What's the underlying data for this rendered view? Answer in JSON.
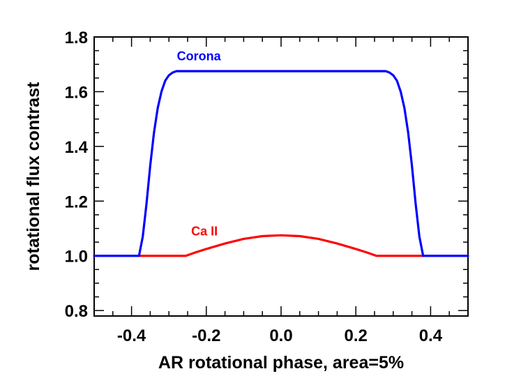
{
  "chart_data": {
    "type": "line",
    "xlabel": "AR rotational phase, area=5%",
    "ylabel": "rotational flux contrast",
    "xlim": [
      -0.5,
      0.5
    ],
    "ylim": [
      0.78,
      1.8
    ],
    "x_major_ticks": [
      -0.4,
      -0.2,
      0.0,
      0.2,
      0.4
    ],
    "x_tick_labels": [
      "-0.4",
      "-0.2",
      "0.0",
      "0.2",
      "0.4"
    ],
    "x_minor_step": 0.05,
    "y_major_ticks": [
      0.8,
      1.0,
      1.2,
      1.4,
      1.6,
      1.8
    ],
    "y_tick_labels": [
      "0.8",
      "1.0",
      "1.2",
      "1.4",
      "1.6",
      "1.8"
    ],
    "y_minor_step": 0.05,
    "grid": false,
    "series": [
      {
        "name": "Corona",
        "color": "#0000ff",
        "label_at": [
          -0.22,
          1.715
        ],
        "x": [
          -0.5,
          -0.38,
          -0.37,
          -0.36,
          -0.35,
          -0.34,
          -0.33,
          -0.32,
          -0.31,
          -0.3,
          -0.29,
          -0.28,
          -0.27,
          -0.26,
          -0.25,
          0.0,
          0.25,
          0.26,
          0.27,
          0.28,
          0.29,
          0.3,
          0.31,
          0.32,
          0.33,
          0.34,
          0.35,
          0.36,
          0.37,
          0.38,
          0.5
        ],
        "y": [
          1.0,
          1.0,
          1.07,
          1.19,
          1.33,
          1.45,
          1.54,
          1.6,
          1.64,
          1.66,
          1.67,
          1.675,
          1.675,
          1.675,
          1.675,
          1.675,
          1.675,
          1.675,
          1.675,
          1.675,
          1.67,
          1.66,
          1.64,
          1.6,
          1.54,
          1.45,
          1.33,
          1.19,
          1.07,
          1.0,
          1.0
        ]
      },
      {
        "name": "Ca II",
        "color": "#ff0000",
        "label_at": [
          -0.205,
          1.075
        ],
        "x": [
          -0.38,
          -0.255,
          -0.23,
          -0.2,
          -0.15,
          -0.1,
          -0.05,
          0.0,
          0.05,
          0.1,
          0.15,
          0.2,
          0.23,
          0.255,
          0.38
        ],
        "y": [
          1.0,
          1.0,
          1.012,
          1.025,
          1.045,
          1.062,
          1.072,
          1.075,
          1.072,
          1.062,
          1.045,
          1.025,
          1.012,
          1.0,
          1.0
        ]
      }
    ]
  }
}
